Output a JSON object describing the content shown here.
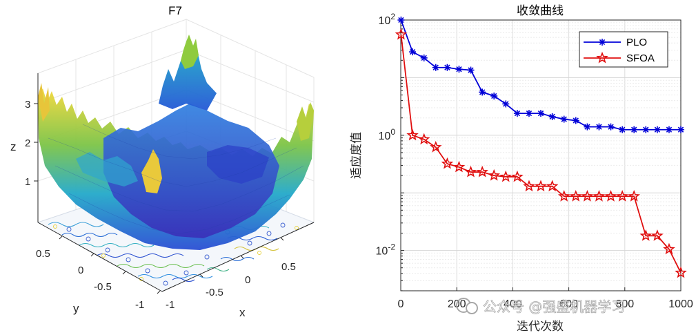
{
  "left_plot": {
    "title": "F7",
    "xlabel": "x",
    "ylabel": "y",
    "zlabel": "z",
    "z_ticks": [
      "1",
      "2",
      "3"
    ],
    "y_ticks": [
      "0.5",
      "0",
      "-0.5",
      "-1"
    ],
    "x_ticks": [
      "-1",
      "-0.5",
      "0",
      "0.5"
    ]
  },
  "chart_data": {
    "type": "line",
    "title": "收敛曲线",
    "xlabel": "迭代次数",
    "ylabel": "适应度值",
    "xlim": [
      0,
      1000
    ],
    "ylim_log10": [
      -2.7,
      2
    ],
    "yscale": "log",
    "grid": true,
    "legend_position": "top-right",
    "x_tick_labels": [
      "0",
      "200",
      "400",
      "600",
      "800",
      "1000"
    ],
    "y_tick_labels": [
      {
        "base": "10",
        "exp": "2",
        "value": 100
      },
      {
        "base": "10",
        "exp": "0",
        "value": 1
      },
      {
        "base": "10",
        "exp": "-2",
        "value": 0.01
      }
    ],
    "x": [
      1,
      42,
      83,
      125,
      166,
      208,
      250,
      291,
      333,
      375,
      416,
      458,
      500,
      541,
      583,
      625,
      666,
      708,
      750,
      791,
      833,
      875,
      916,
      958,
      1000
    ],
    "series": [
      {
        "name": "PLO",
        "color": "#0000d8",
        "marker": "asterisk",
        "values": [
          100,
          28,
          22,
          15,
          15,
          14,
          13.5,
          5.6,
          4.8,
          3.5,
          2.4,
          2.4,
          2.4,
          2.1,
          1.9,
          1.8,
          1.4,
          1.4,
          1.4,
          1.25,
          1.25,
          1.25,
          1.25,
          1.25,
          1.25
        ]
      },
      {
        "name": "SFOA",
        "color": "#e01010",
        "marker": "pentagram",
        "values": [
          56,
          1.0,
          0.85,
          0.62,
          0.32,
          0.28,
          0.23,
          0.23,
          0.2,
          0.19,
          0.19,
          0.13,
          0.13,
          0.13,
          0.087,
          0.087,
          0.087,
          0.087,
          0.087,
          0.087,
          0.087,
          0.018,
          0.018,
          0.0105,
          0.0041
        ]
      }
    ]
  },
  "watermark": "公众号 @强盛机器学习"
}
